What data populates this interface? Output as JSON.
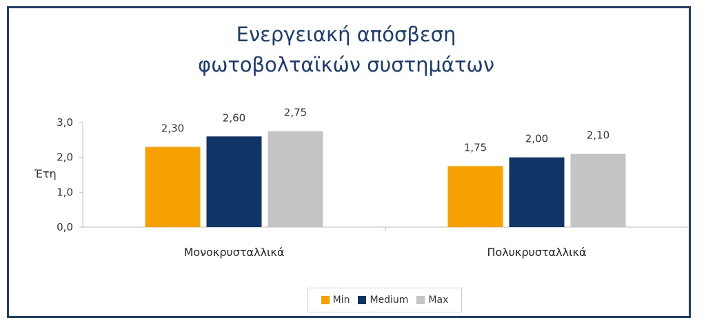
{
  "chart_data": {
    "type": "bar",
    "title": [
      "Ενεργειακή απόσβεση",
      "φωτοβολταϊκών συστημάτων"
    ],
    "ylabel": "Έτη",
    "xlabel": "",
    "categories": [
      "Μονοκρυσταλλικά",
      "Πολυκρυσταλλικά"
    ],
    "ylim": [
      0,
      3
    ],
    "yticks": [
      "0,0",
      "1,0",
      "2,0",
      "3,0"
    ],
    "series": [
      {
        "name": "Min",
        "color": "#f7a100",
        "values": [
          2.3,
          1.75
        ],
        "labels": [
          "2,30",
          "1,75"
        ]
      },
      {
        "name": "Medium",
        "color": "#0f3567",
        "values": [
          2.6,
          2.0
        ],
        "labels": [
          "2,60",
          "2,00"
        ]
      },
      {
        "name": "Max",
        "color": "#c4c4c4",
        "values": [
          2.75,
          2.1
        ],
        "labels": [
          "2,75",
          "2,10"
        ]
      }
    ],
    "legend_position": "bottom",
    "grid": false
  }
}
